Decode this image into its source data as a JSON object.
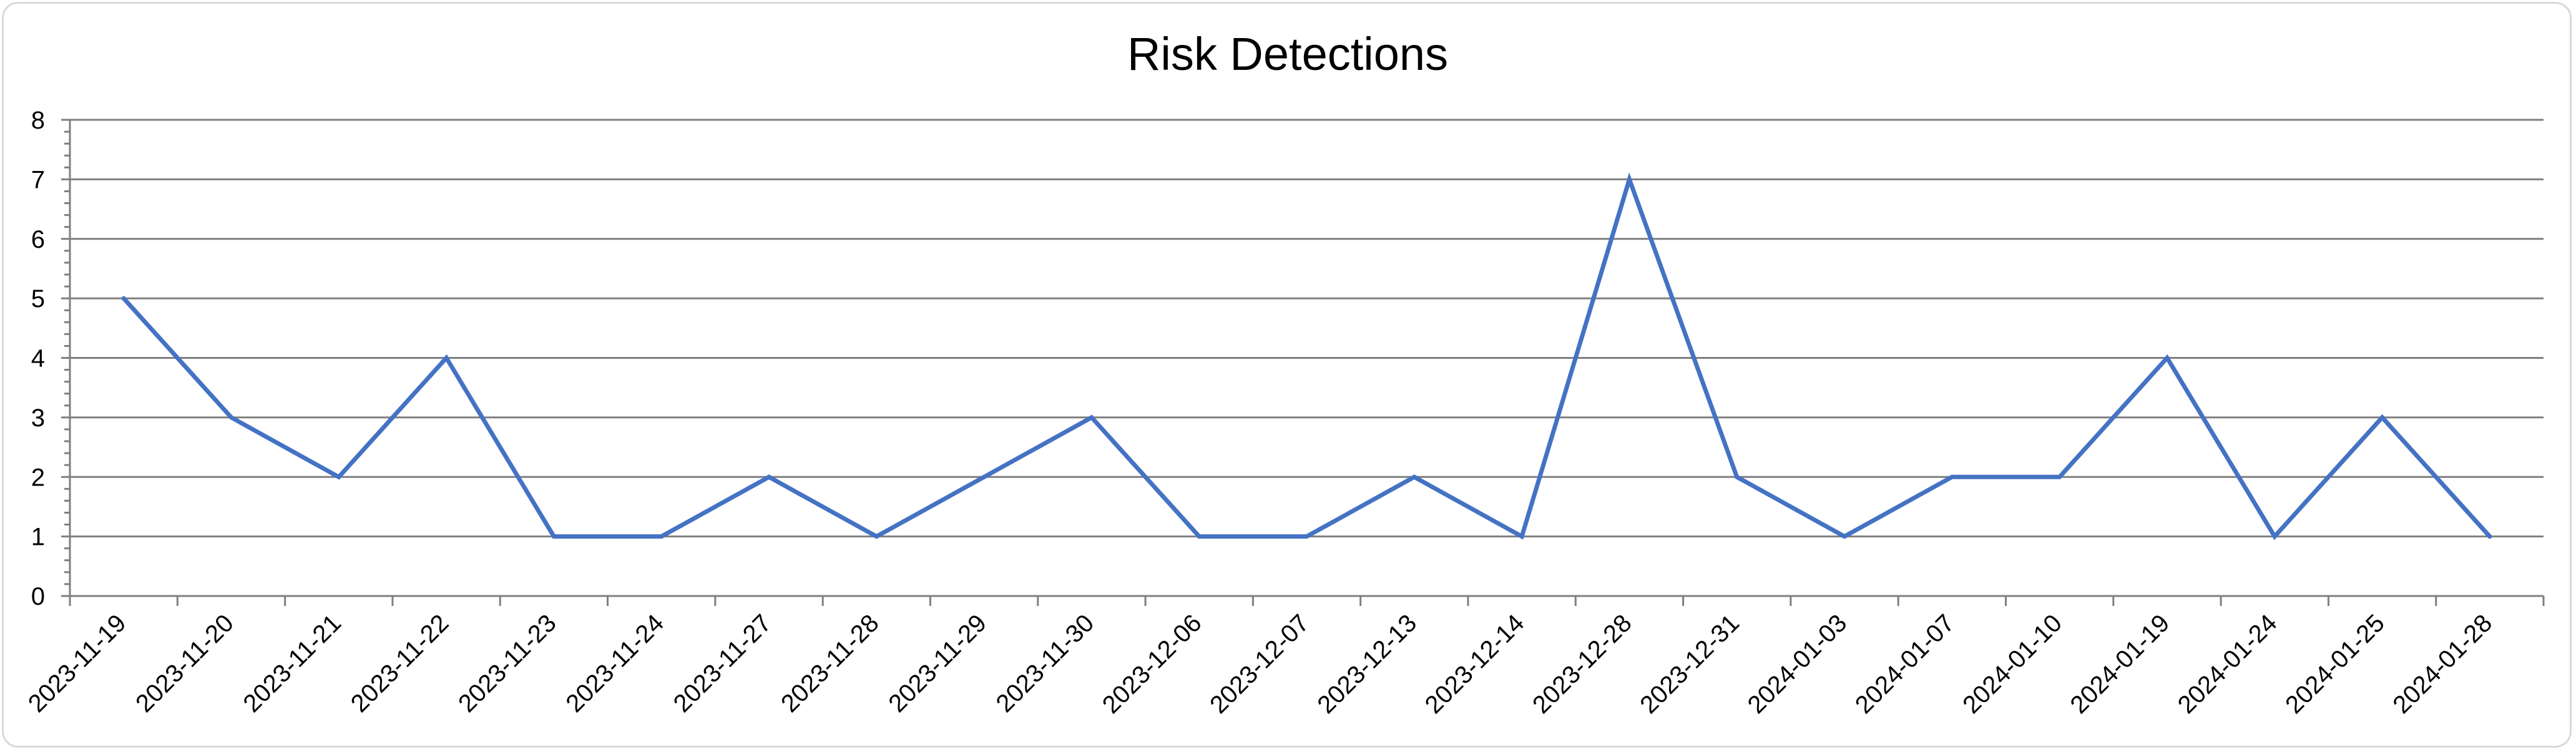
{
  "chart_data": {
    "type": "line",
    "title": "Risk Detections",
    "xlabel": "",
    "ylabel": "",
    "ylim": [
      0,
      8
    ],
    "yticks": [
      0,
      1,
      2,
      3,
      4,
      5,
      6,
      7,
      8
    ],
    "grid": true,
    "legend": "none",
    "categories": [
      "2023-11-19",
      "2023-11-20",
      "2023-11-21",
      "2023-11-22",
      "2023-11-23",
      "2023-11-24",
      "2023-11-27",
      "2023-11-28",
      "2023-11-29",
      "2023-11-30",
      "2023-12-06",
      "2023-12-07",
      "2023-12-13",
      "2023-12-14",
      "2023-12-28",
      "2023-12-31",
      "2024-01-03",
      "2024-01-07",
      "2024-01-10",
      "2024-01-19",
      "2024-01-24",
      "2024-01-25",
      "2024-01-28"
    ],
    "series": [
      {
        "values": [
          5,
          3,
          2,
          4,
          1,
          1,
          2,
          1,
          2,
          3,
          1,
          1,
          2,
          1,
          7,
          2,
          1,
          2,
          2,
          4,
          1,
          3,
          1
        ],
        "color": "#4472c4"
      }
    ],
    "colors": {
      "gridline": "#7f7f7f",
      "axis": "#7f7f7f"
    }
  }
}
